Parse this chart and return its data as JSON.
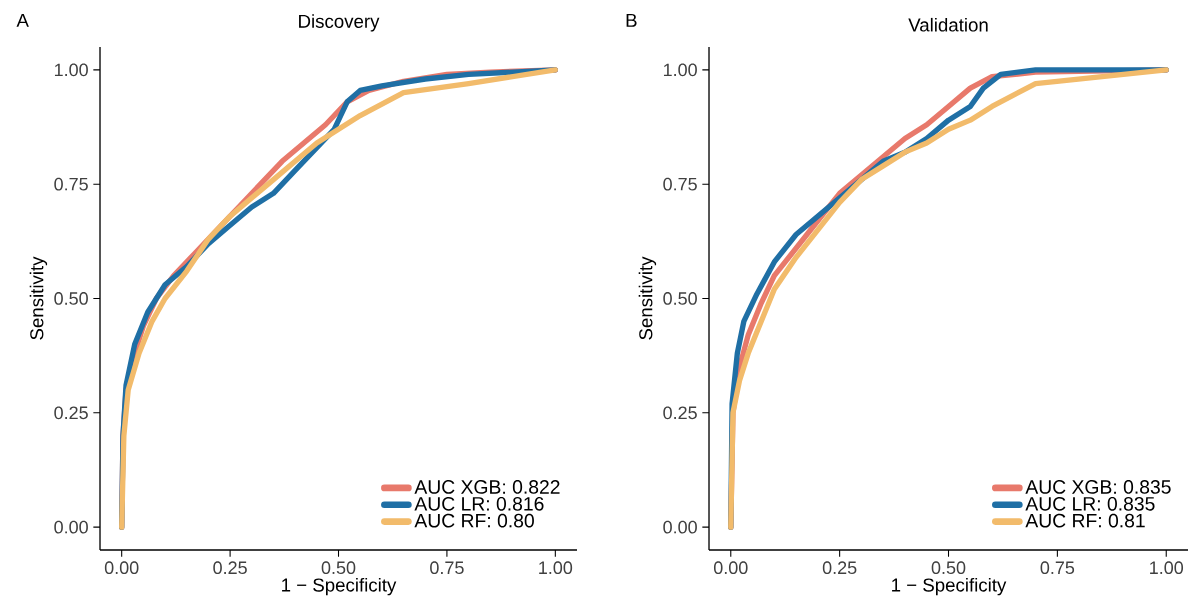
{
  "chart_data": [
    {
      "type": "line",
      "title": "Discovery",
      "xlabel": "1 − Specificity",
      "ylabel": "Sensitivity",
      "annotations": [
        "A"
      ],
      "xlim": [
        -0.05,
        1.05
      ],
      "ylim": [
        -0.05,
        1.05
      ],
      "xticks": [
        {
          "value": 0,
          "label": "0.00"
        },
        {
          "value": 0.25,
          "label": "0.25"
        },
        {
          "value": 0.5,
          "label": "0.50"
        },
        {
          "value": 0.75,
          "label": "0.75"
        },
        {
          "value": 1,
          "label": "1.00"
        }
      ],
      "yticks": [
        {
          "value": 0,
          "label": "0.00"
        },
        {
          "value": 0.25,
          "label": "0.25"
        },
        {
          "value": 0.5,
          "label": "0.50"
        },
        {
          "value": 0.75,
          "label": "0.75"
        },
        {
          "value": 1,
          "label": "1.00"
        }
      ],
      "legend": "bottom right",
      "series": [
        {
          "name": "AUC XGB: 0.822",
          "color": "#e8796b",
          "x": [
            0,
            0.003,
            0.01,
            0.03,
            0.05,
            0.08,
            0.12,
            0.17,
            0.22,
            0.27,
            0.32,
            0.37,
            0.42,
            0.47,
            0.52,
            0.57,
            0.65,
            0.75,
            0.85,
            1
          ],
          "values": [
            0,
            0.2,
            0.3,
            0.38,
            0.44,
            0.5,
            0.55,
            0.6,
            0.65,
            0.7,
            0.75,
            0.8,
            0.84,
            0.88,
            0.93,
            0.955,
            0.975,
            0.99,
            0.995,
            1
          ]
        },
        {
          "name": "AUC LR: 0.816",
          "color": "#1f6fa5",
          "x": [
            0,
            0.003,
            0.01,
            0.03,
            0.06,
            0.1,
            0.15,
            0.2,
            0.25,
            0.3,
            0.35,
            0.4,
            0.45,
            0.49,
            0.52,
            0.55,
            0.6,
            0.7,
            0.8,
            1
          ],
          "values": [
            0,
            0.2,
            0.31,
            0.4,
            0.47,
            0.53,
            0.57,
            0.62,
            0.66,
            0.7,
            0.73,
            0.78,
            0.83,
            0.87,
            0.93,
            0.955,
            0.965,
            0.98,
            0.99,
            1
          ]
        },
        {
          "name": "AUC RF: 0.80",
          "color": "#f2bb6b",
          "x": [
            0,
            0.005,
            0.015,
            0.04,
            0.07,
            0.1,
            0.15,
            0.2,
            0.25,
            0.3,
            0.35,
            0.4,
            0.45,
            0.5,
            0.55,
            0.65,
            0.8,
            1
          ],
          "values": [
            0,
            0.2,
            0.3,
            0.38,
            0.45,
            0.5,
            0.56,
            0.63,
            0.68,
            0.72,
            0.76,
            0.8,
            0.84,
            0.87,
            0.9,
            0.95,
            0.97,
            1
          ]
        }
      ]
    },
    {
      "type": "line",
      "title": "Validation",
      "xlabel": "1 − Specificity",
      "ylabel": "Sensitivity",
      "annotations": [
        "B"
      ],
      "xlim": [
        -0.05,
        1.05
      ],
      "ylim": [
        -0.05,
        1.05
      ],
      "xticks": [
        {
          "value": 0,
          "label": "0.00"
        },
        {
          "value": 0.25,
          "label": "0.25"
        },
        {
          "value": 0.5,
          "label": "0.50"
        },
        {
          "value": 0.75,
          "label": "0.75"
        },
        {
          "value": 1,
          "label": "1.00"
        }
      ],
      "yticks": [
        {
          "value": 0,
          "label": "0.00"
        },
        {
          "value": 0.25,
          "label": "0.25"
        },
        {
          "value": 0.5,
          "label": "0.50"
        },
        {
          "value": 0.75,
          "label": "0.75"
        },
        {
          "value": 1,
          "label": "1.00"
        }
      ],
      "legend": "bottom right",
      "series": [
        {
          "name": "AUC XGB: 0.835",
          "color": "#e8796b",
          "x": [
            0,
            0.005,
            0.02,
            0.04,
            0.07,
            0.1,
            0.15,
            0.2,
            0.25,
            0.3,
            0.35,
            0.4,
            0.45,
            0.5,
            0.55,
            0.6,
            0.7,
            1
          ],
          "values": [
            0,
            0.25,
            0.35,
            0.42,
            0.49,
            0.55,
            0.61,
            0.67,
            0.73,
            0.77,
            0.81,
            0.85,
            0.88,
            0.92,
            0.96,
            0.985,
            0.995,
            1
          ]
        },
        {
          "name": "AUC LR: 0.835",
          "color": "#1f6fa5",
          "x": [
            0,
            0.003,
            0.015,
            0.03,
            0.06,
            0.1,
            0.15,
            0.2,
            0.25,
            0.3,
            0.35,
            0.4,
            0.45,
            0.5,
            0.55,
            0.58,
            0.62,
            0.7,
            1
          ],
          "values": [
            0,
            0.27,
            0.38,
            0.45,
            0.51,
            0.58,
            0.64,
            0.68,
            0.72,
            0.76,
            0.8,
            0.82,
            0.85,
            0.89,
            0.92,
            0.96,
            0.99,
            1,
            1
          ]
        },
        {
          "name": "AUC RF: 0.81",
          "color": "#f2bb6b",
          "x": [
            0,
            0.005,
            0.02,
            0.04,
            0.07,
            0.1,
            0.15,
            0.2,
            0.25,
            0.3,
            0.35,
            0.4,
            0.45,
            0.5,
            0.55,
            0.6,
            0.7,
            1
          ],
          "values": [
            0,
            0.25,
            0.32,
            0.38,
            0.45,
            0.52,
            0.59,
            0.65,
            0.71,
            0.76,
            0.79,
            0.82,
            0.84,
            0.87,
            0.89,
            0.92,
            0.97,
            1
          ]
        }
      ]
    }
  ]
}
